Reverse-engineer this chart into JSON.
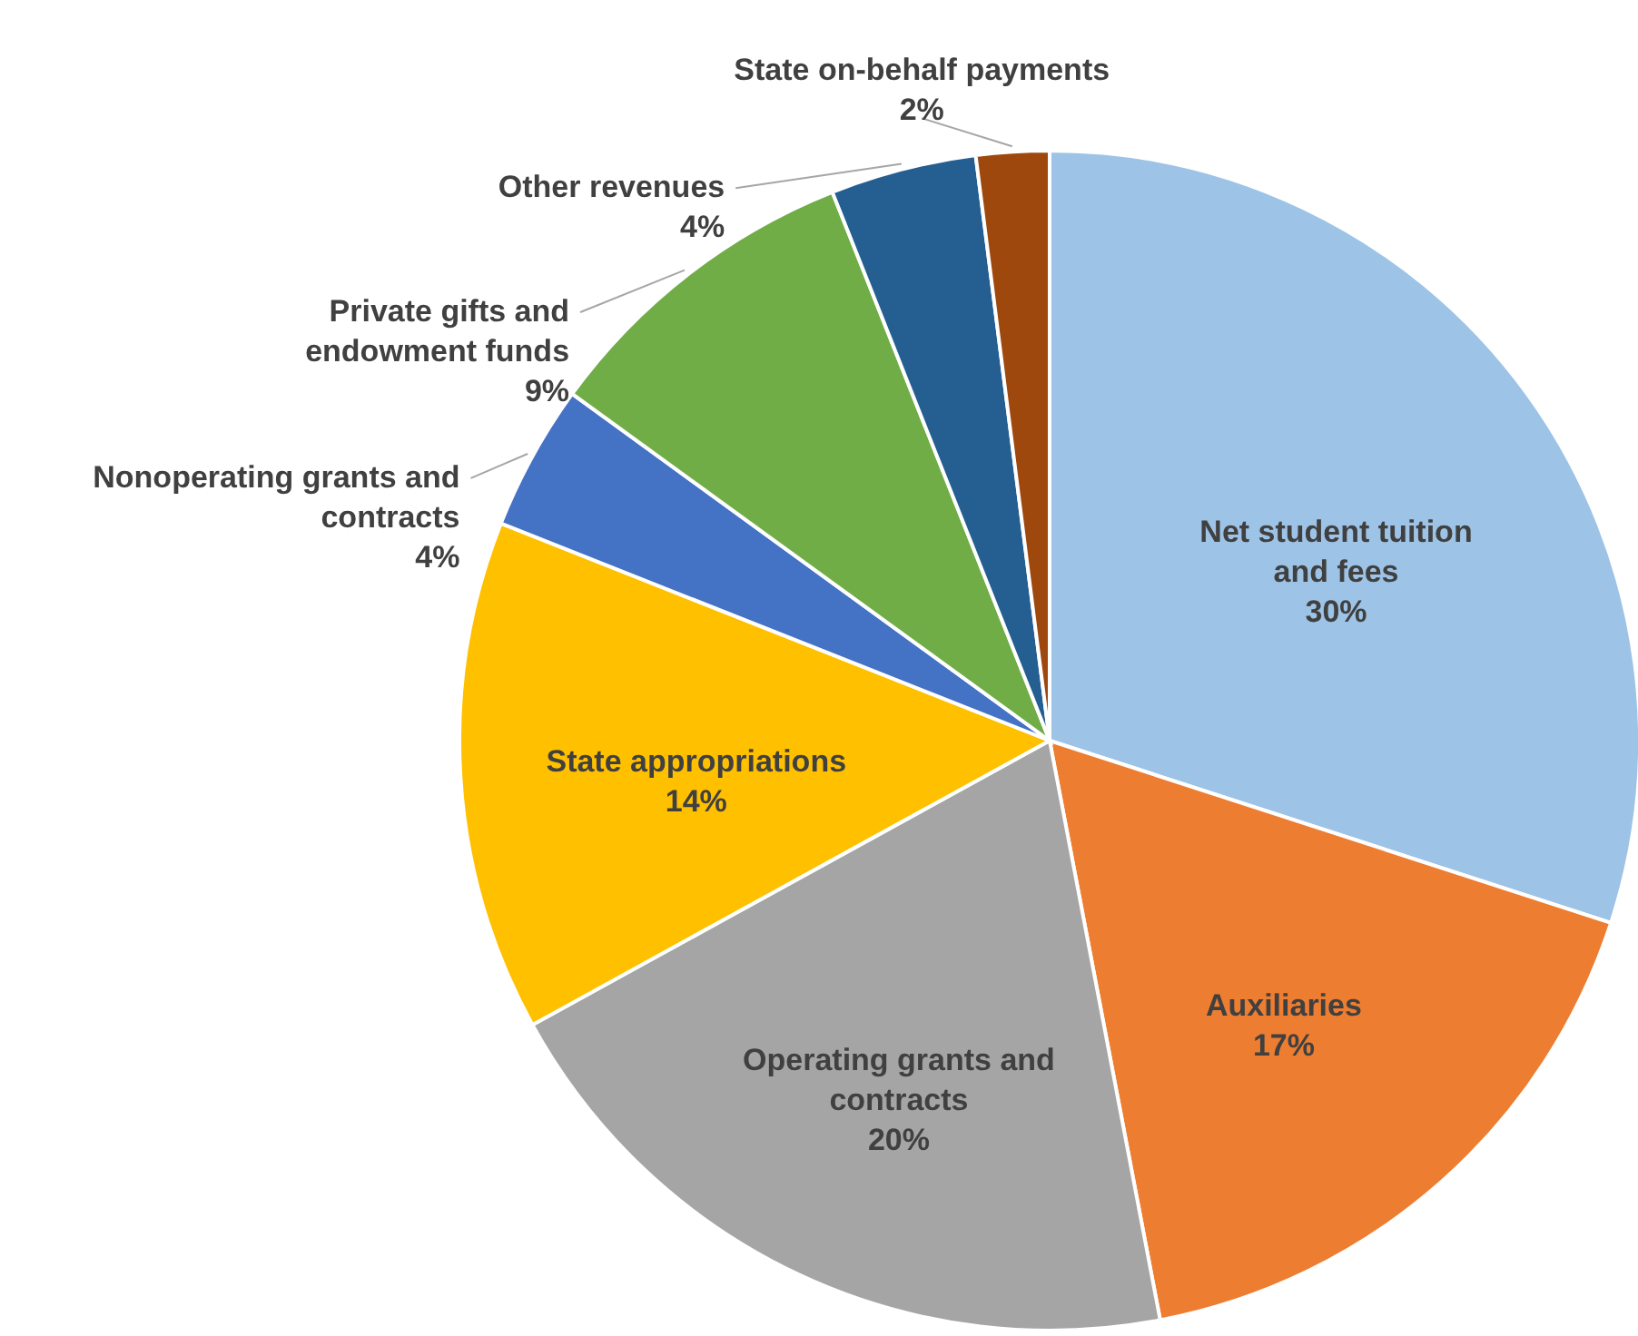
{
  "chart_data": {
    "type": "pie",
    "categories": [
      "Net student tuition and fees",
      "Auxiliaries",
      "Operating grants and contracts",
      "State appropriations",
      "Nonoperating grants and contracts",
      "Private gifts and endowment funds",
      "Other revenues",
      "State on-behalf payments"
    ],
    "values": [
      30,
      17,
      20,
      14,
      4,
      9,
      4,
      2
    ],
    "colors": [
      "#9dc3e6",
      "#ed7d31",
      "#a5a5a5",
      "#ffc000",
      "#4472c4",
      "#70ad47",
      "#255e91",
      "#9e480e"
    ],
    "value_labels": [
      "30%",
      "17%",
      "20%",
      "14%",
      "4%",
      "9%",
      "4%",
      "2%"
    ]
  }
}
